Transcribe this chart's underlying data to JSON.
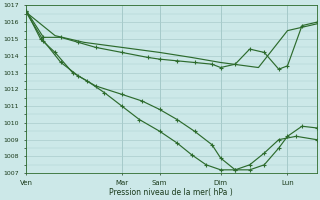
{
  "background_color": "#cce8e8",
  "plot_bg_color": "#cce8e8",
  "grid_color": "#aacccc",
  "line_color": "#2d6b2d",
  "ylim": [
    1007,
    1017
  ],
  "yticks": [
    1007,
    1008,
    1009,
    1010,
    1011,
    1012,
    1013,
    1014,
    1015,
    1016,
    1017
  ],
  "xlabel": "Pression niveau de la mer( hPa )",
  "xtick_labels": [
    "Ven",
    "Mar",
    "Sam",
    "Dim",
    "Lun"
  ],
  "xtick_positions": [
    0.0,
    0.33,
    0.46,
    0.67,
    0.9
  ],
  "line1_x": [
    0.0,
    0.06,
    0.12,
    0.18,
    0.24,
    0.33,
    0.42,
    0.46,
    0.52,
    0.58,
    0.64,
    0.67,
    0.72,
    0.77,
    0.82,
    0.87,
    0.9,
    0.95,
    1.0
  ],
  "line1_y": [
    1016.7,
    1015.1,
    1015.1,
    1014.8,
    1014.5,
    1014.2,
    1013.9,
    1013.8,
    1013.7,
    1013.6,
    1013.5,
    1013.3,
    1013.5,
    1014.4,
    1014.2,
    1013.2,
    1013.4,
    1015.8,
    1016.0
  ],
  "line1_markers": true,
  "line2_x": [
    0.0,
    0.05,
    0.1,
    0.16,
    0.21,
    0.27,
    0.33,
    0.39,
    0.46,
    0.52,
    0.57,
    0.62,
    0.67,
    0.72,
    0.77,
    0.82,
    0.87,
    0.93,
    1.0
  ],
  "line2_y": [
    1016.7,
    1015.0,
    1014.2,
    1013.0,
    1012.5,
    1011.8,
    1011.0,
    1010.2,
    1009.5,
    1008.8,
    1008.1,
    1007.5,
    1007.2,
    1007.2,
    1007.5,
    1008.2,
    1009.0,
    1009.2,
    1009.0
  ],
  "line2_markers": true,
  "line3_x": [
    0.0,
    0.1,
    0.2,
    0.33,
    0.46,
    0.57,
    0.67,
    0.8,
    0.9,
    1.0
  ],
  "line3_y": [
    1016.6,
    1015.2,
    1014.8,
    1014.5,
    1014.2,
    1013.9,
    1013.6,
    1013.3,
    1015.5,
    1015.9
  ],
  "line3_markers": false,
  "line4_x": [
    0.0,
    0.06,
    0.12,
    0.18,
    0.24,
    0.33,
    0.4,
    0.46,
    0.52,
    0.58,
    0.64,
    0.67,
    0.72,
    0.77,
    0.82,
    0.87,
    0.9,
    0.95,
    1.0
  ],
  "line4_y": [
    1016.6,
    1014.9,
    1013.6,
    1012.8,
    1012.2,
    1011.7,
    1011.3,
    1010.8,
    1010.2,
    1009.5,
    1008.7,
    1007.9,
    1007.2,
    1007.2,
    1007.5,
    1008.5,
    1009.2,
    1009.8,
    1009.7
  ],
  "line4_markers": true
}
